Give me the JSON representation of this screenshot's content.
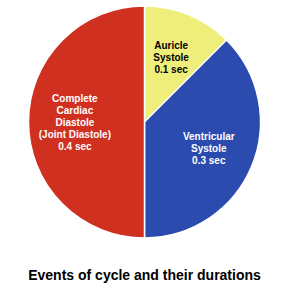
{
  "chart_data": {
    "type": "pie",
    "title": "Events of cycle and their durations",
    "categories": [
      "Auricle\nSystole\n0.1 sec",
      "Ventricular\nSystole\n0.3 sec",
      "Complete\nCardiac\nDiastole\n(Joint Diastole)\n0.4 sec"
    ],
    "values": [
      0.1,
      0.3,
      0.4
    ],
    "colors": [
      "#F0EE7A",
      "#2B4BAF",
      "#D03020"
    ]
  }
}
